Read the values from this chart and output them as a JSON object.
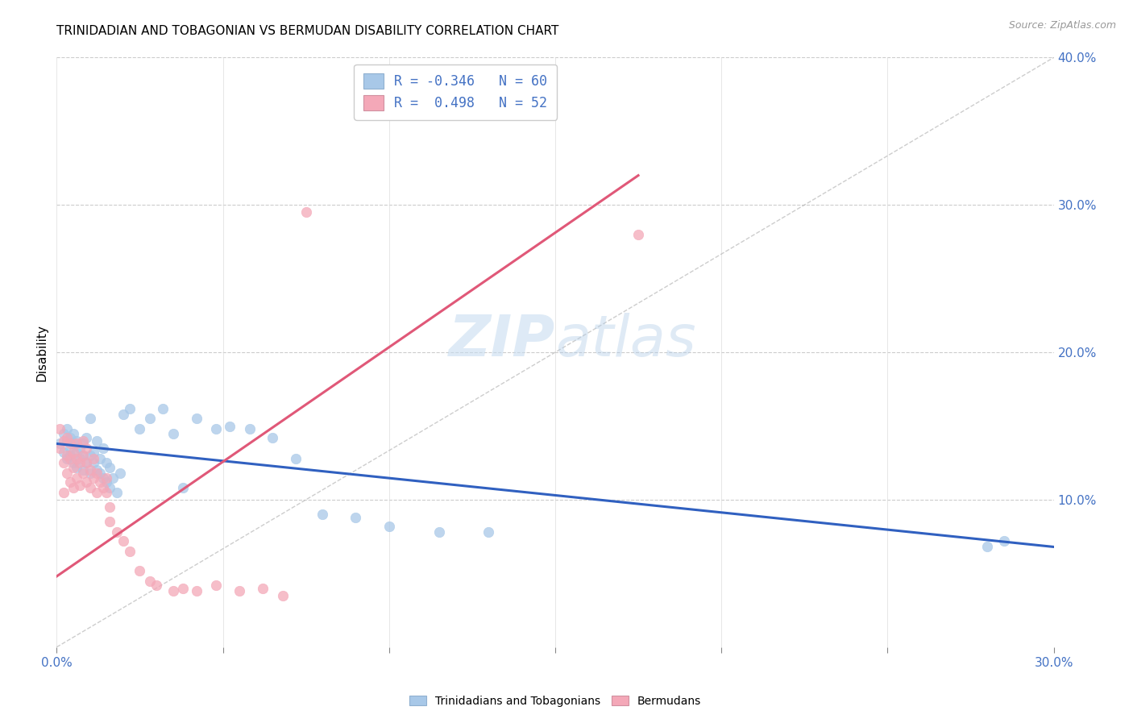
{
  "title": "TRINIDADIAN AND TOBAGONIAN VS BERMUDAN DISABILITY CORRELATION CHART",
  "source": "Source: ZipAtlas.com",
  "ylabel": "Disability",
  "x_min": 0.0,
  "x_max": 0.3,
  "y_min": 0.0,
  "y_max": 0.4,
  "x_ticks": [
    0.0,
    0.05,
    0.1,
    0.15,
    0.2,
    0.25,
    0.3
  ],
  "x_tick_labels": [
    "0.0%",
    "",
    "",
    "",
    "",
    "",
    "30.0%"
  ],
  "y_ticks_right": [
    0.1,
    0.2,
    0.3,
    0.4
  ],
  "y_tick_labels_right": [
    "10.0%",
    "20.0%",
    "30.0%",
    "40.0%"
  ],
  "legend_blue_label": "R = -0.346   N = 60",
  "legend_pink_label": "R =  0.498   N = 52",
  "blue_color": "#a8c8e8",
  "pink_color": "#f4a8b8",
  "blue_line_color": "#3060c0",
  "pink_line_color": "#e05878",
  "ref_line_color": "#b8b8b8",
  "legend_bottom_blue": "Trinidadians and Tobagonians",
  "legend_bottom_pink": "Bermudans",
  "watermark_zip": "ZIP",
  "watermark_atlas": "atlas",
  "blue_points_x": [
    0.001,
    0.002,
    0.002,
    0.003,
    0.003,
    0.003,
    0.004,
    0.004,
    0.004,
    0.005,
    0.005,
    0.005,
    0.006,
    0.006,
    0.006,
    0.007,
    0.007,
    0.008,
    0.008,
    0.008,
    0.009,
    0.009,
    0.01,
    0.01,
    0.01,
    0.011,
    0.011,
    0.012,
    0.012,
    0.013,
    0.013,
    0.014,
    0.014,
    0.015,
    0.015,
    0.016,
    0.016,
    0.017,
    0.018,
    0.019,
    0.02,
    0.022,
    0.025,
    0.028,
    0.032,
    0.035,
    0.038,
    0.042,
    0.048,
    0.052,
    0.058,
    0.065,
    0.072,
    0.08,
    0.09,
    0.1,
    0.115,
    0.13,
    0.28,
    0.285
  ],
  "blue_points_y": [
    0.138,
    0.132,
    0.145,
    0.128,
    0.14,
    0.148,
    0.13,
    0.142,
    0.135,
    0.125,
    0.138,
    0.145,
    0.122,
    0.132,
    0.14,
    0.128,
    0.135,
    0.12,
    0.13,
    0.138,
    0.125,
    0.142,
    0.118,
    0.13,
    0.155,
    0.125,
    0.132,
    0.12,
    0.14,
    0.118,
    0.128,
    0.115,
    0.135,
    0.112,
    0.125,
    0.108,
    0.122,
    0.115,
    0.105,
    0.118,
    0.158,
    0.162,
    0.148,
    0.155,
    0.162,
    0.145,
    0.108,
    0.155,
    0.148,
    0.15,
    0.148,
    0.142,
    0.128,
    0.09,
    0.088,
    0.082,
    0.078,
    0.078,
    0.068,
    0.072
  ],
  "pink_points_x": [
    0.001,
    0.001,
    0.002,
    0.002,
    0.002,
    0.003,
    0.003,
    0.003,
    0.004,
    0.004,
    0.004,
    0.005,
    0.005,
    0.005,
    0.006,
    0.006,
    0.006,
    0.007,
    0.007,
    0.008,
    0.008,
    0.008,
    0.009,
    0.009,
    0.009,
    0.01,
    0.01,
    0.011,
    0.011,
    0.012,
    0.012,
    0.013,
    0.014,
    0.015,
    0.015,
    0.016,
    0.016,
    0.018,
    0.02,
    0.022,
    0.025,
    0.028,
    0.03,
    0.035,
    0.038,
    0.042,
    0.048,
    0.055,
    0.062,
    0.068,
    0.075,
    0.175
  ],
  "pink_points_y": [
    0.135,
    0.148,
    0.105,
    0.125,
    0.14,
    0.118,
    0.13,
    0.142,
    0.112,
    0.128,
    0.138,
    0.108,
    0.122,
    0.132,
    0.115,
    0.128,
    0.138,
    0.11,
    0.125,
    0.118,
    0.13,
    0.14,
    0.112,
    0.125,
    0.135,
    0.108,
    0.12,
    0.115,
    0.128,
    0.105,
    0.118,
    0.112,
    0.108,
    0.115,
    0.105,
    0.095,
    0.085,
    0.078,
    0.072,
    0.065,
    0.052,
    0.045,
    0.042,
    0.038,
    0.04,
    0.038,
    0.042,
    0.038,
    0.04,
    0.035,
    0.295,
    0.28
  ],
  "blue_trend_x": [
    0.0,
    0.3
  ],
  "blue_trend_y": [
    0.138,
    0.068
  ],
  "pink_trend_x": [
    0.0,
    0.175
  ],
  "pink_trend_y": [
    0.048,
    0.32
  ],
  "ref_line_x": [
    0.0,
    0.3
  ],
  "ref_line_y": [
    0.0,
    0.4
  ]
}
